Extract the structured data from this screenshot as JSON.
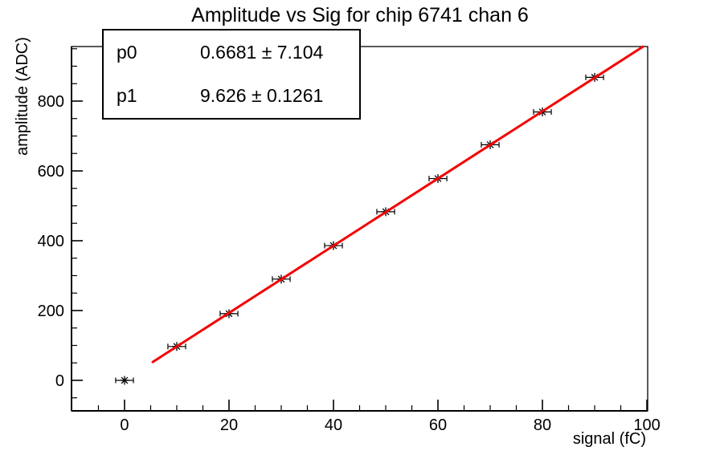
{
  "stats": {
    "rows": [
      {
        "name": "p0",
        "value": "0.6681 ± 7.104"
      },
      {
        "name": "p1",
        "value": "9.626 ± 0.1261"
      }
    ]
  },
  "chart_data": {
    "type": "scatter",
    "title": "Amplitude vs Sig for chip 6741 chan 6",
    "xlabel": "signal (fC)",
    "ylabel": "amplitude (ADC)",
    "x": [
      0,
      10,
      20,
      30,
      40,
      50,
      60,
      70,
      80,
      90
    ],
    "y": [
      0,
      97,
      191,
      290,
      386,
      483,
      578,
      675,
      769,
      868
    ],
    "xerr": 1.7,
    "xlim": [
      -10.15,
      100.15
    ],
    "ylim": [
      -87.4,
      956.3
    ],
    "xticks": [
      0,
      20,
      40,
      60,
      80,
      100
    ],
    "yticks": [
      0,
      200,
      400,
      600,
      800
    ],
    "x_minor_step": 5,
    "y_minor_step": 50,
    "marker": "asterisk",
    "fit": {
      "type": "linear",
      "p0": 0.6681,
      "p0_err": 7.104,
      "p1": 9.626,
      "p1_err": 0.1261,
      "draw_range": [
        5.4,
        99.25
      ],
      "color": "#f40000"
    },
    "colors": {
      "axis": "#000000",
      "marker": "#000000",
      "fit_line": "#f40000",
      "background": "#ffffff"
    },
    "legend_position": "none",
    "grid": false
  }
}
